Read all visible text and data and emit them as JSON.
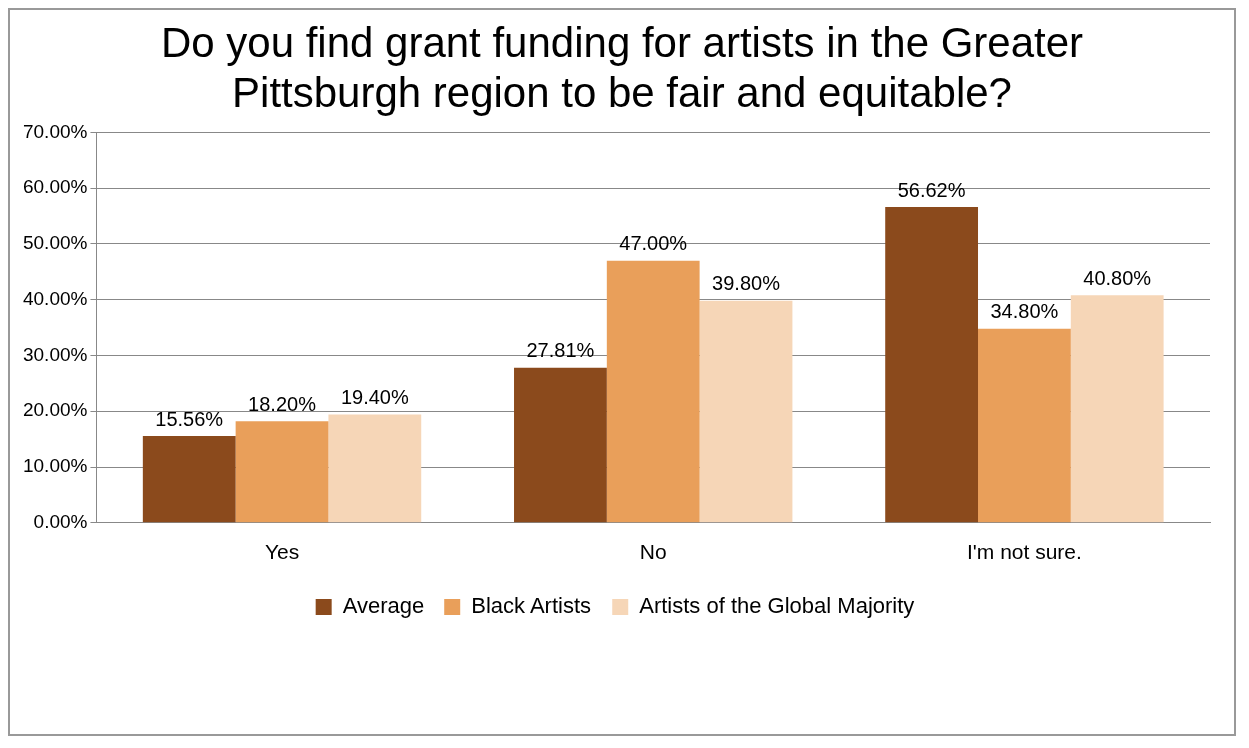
{
  "chart_data": {
    "type": "bar",
    "title": "Do you find grant funding for artists in the Greater Pittsburgh region to be fair and equitable?",
    "categories": [
      "Yes",
      "No",
      "I'm not sure."
    ],
    "series": [
      {
        "name": "Average",
        "color": "#8b4a1c",
        "values": [
          15.56,
          27.81,
          56.62
        ],
        "value_labels": [
          "15.56%",
          "27.81%",
          "56.62%"
        ]
      },
      {
        "name": "Black Artists",
        "color": "#e99f5a",
        "values": [
          18.2,
          47.0,
          34.8
        ],
        "value_labels": [
          "18.20%",
          "47.00%",
          "34.80%"
        ]
      },
      {
        "name": "Artists of the Global Majority",
        "color": "#f6d6b7",
        "values": [
          19.4,
          39.8,
          40.8
        ],
        "value_labels": [
          "19.40%",
          "39.80%",
          "40.80%"
        ]
      }
    ],
    "ylim": [
      0,
      70
    ],
    "yticks": [
      {
        "value": 0,
        "label": "0.00%"
      },
      {
        "value": 10,
        "label": "10.00%"
      },
      {
        "value": 20,
        "label": "20.00%"
      },
      {
        "value": 30,
        "label": "30.00%"
      },
      {
        "value": 40,
        "label": "40.00%"
      },
      {
        "value": 50,
        "label": "50.00%"
      },
      {
        "value": 60,
        "label": "60.00%"
      },
      {
        "value": 70,
        "label": "70.00%"
      }
    ],
    "grid": "y",
    "legend": "bottom"
  }
}
